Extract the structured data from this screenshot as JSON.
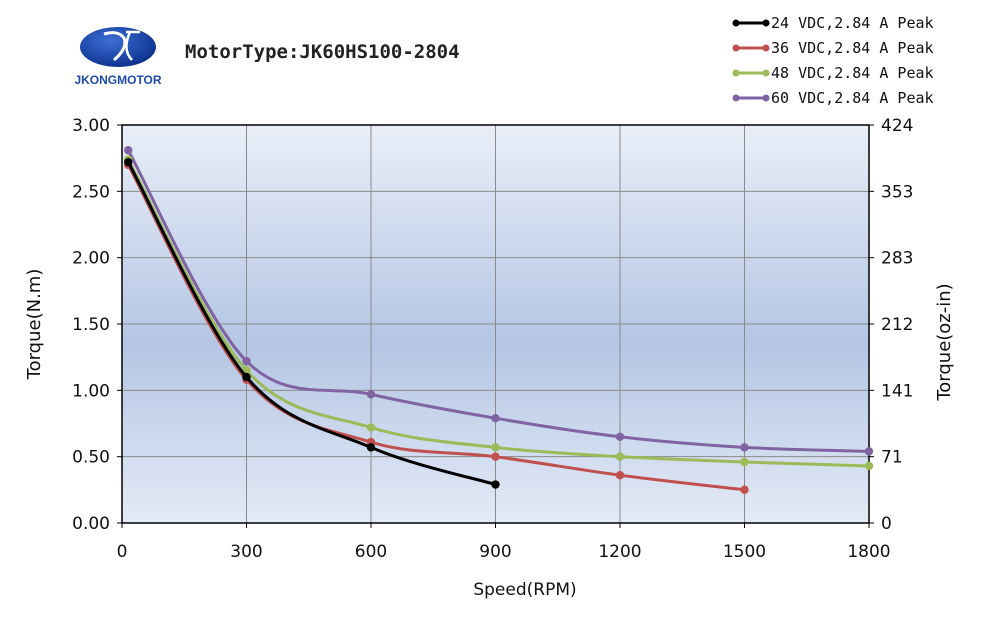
{
  "brand": {
    "name": "JKONGMOTOR"
  },
  "header": {
    "motor_type": "MotorType:JK60HS100-2804"
  },
  "chart_data": {
    "type": "line",
    "xlabel": "Speed(RPM)",
    "ylabel": "Torque(N.m)",
    "y2label": "Torque(oz-in)",
    "xlim": [
      0,
      1800
    ],
    "ylim": [
      0,
      3.0
    ],
    "x_ticks": [
      0,
      300,
      600,
      900,
      1200,
      1500,
      1800
    ],
    "y_ticks": [
      "0.00",
      "0.50",
      "1.00",
      "1.50",
      "2.00",
      "2.50",
      "3.00"
    ],
    "y2_ticks": [
      "0",
      "71",
      "141",
      "212",
      "283",
      "353",
      "424"
    ],
    "grid": true,
    "legend_position": "top-right",
    "series": [
      {
        "name": "24 VDC,2.84 A Peak",
        "color": "#000000",
        "x": [
          15,
          300,
          600,
          900
        ],
        "y": [
          2.72,
          1.1,
          0.57,
          0.29
        ]
      },
      {
        "name": "36 VDC,2.84 A Peak",
        "color": "#c0504d",
        "x": [
          15,
          300,
          600,
          900,
          1200,
          1500
        ],
        "y": [
          2.7,
          1.08,
          0.61,
          0.5,
          0.36,
          0.25
        ]
      },
      {
        "name": "48 VDC,2.84 A Peak",
        "color": "#9bbb59",
        "x": [
          15,
          300,
          600,
          900,
          1200,
          1500,
          1800
        ],
        "y": [
          2.74,
          1.15,
          0.72,
          0.57,
          0.5,
          0.46,
          0.43
        ]
      },
      {
        "name": "60 VDC,2.84 A Peak",
        "color": "#8064a2",
        "x": [
          15,
          300,
          600,
          900,
          1200,
          1500,
          1800
        ],
        "y": [
          2.81,
          1.22,
          0.97,
          0.79,
          0.65,
          0.57,
          0.54
        ]
      }
    ]
  }
}
